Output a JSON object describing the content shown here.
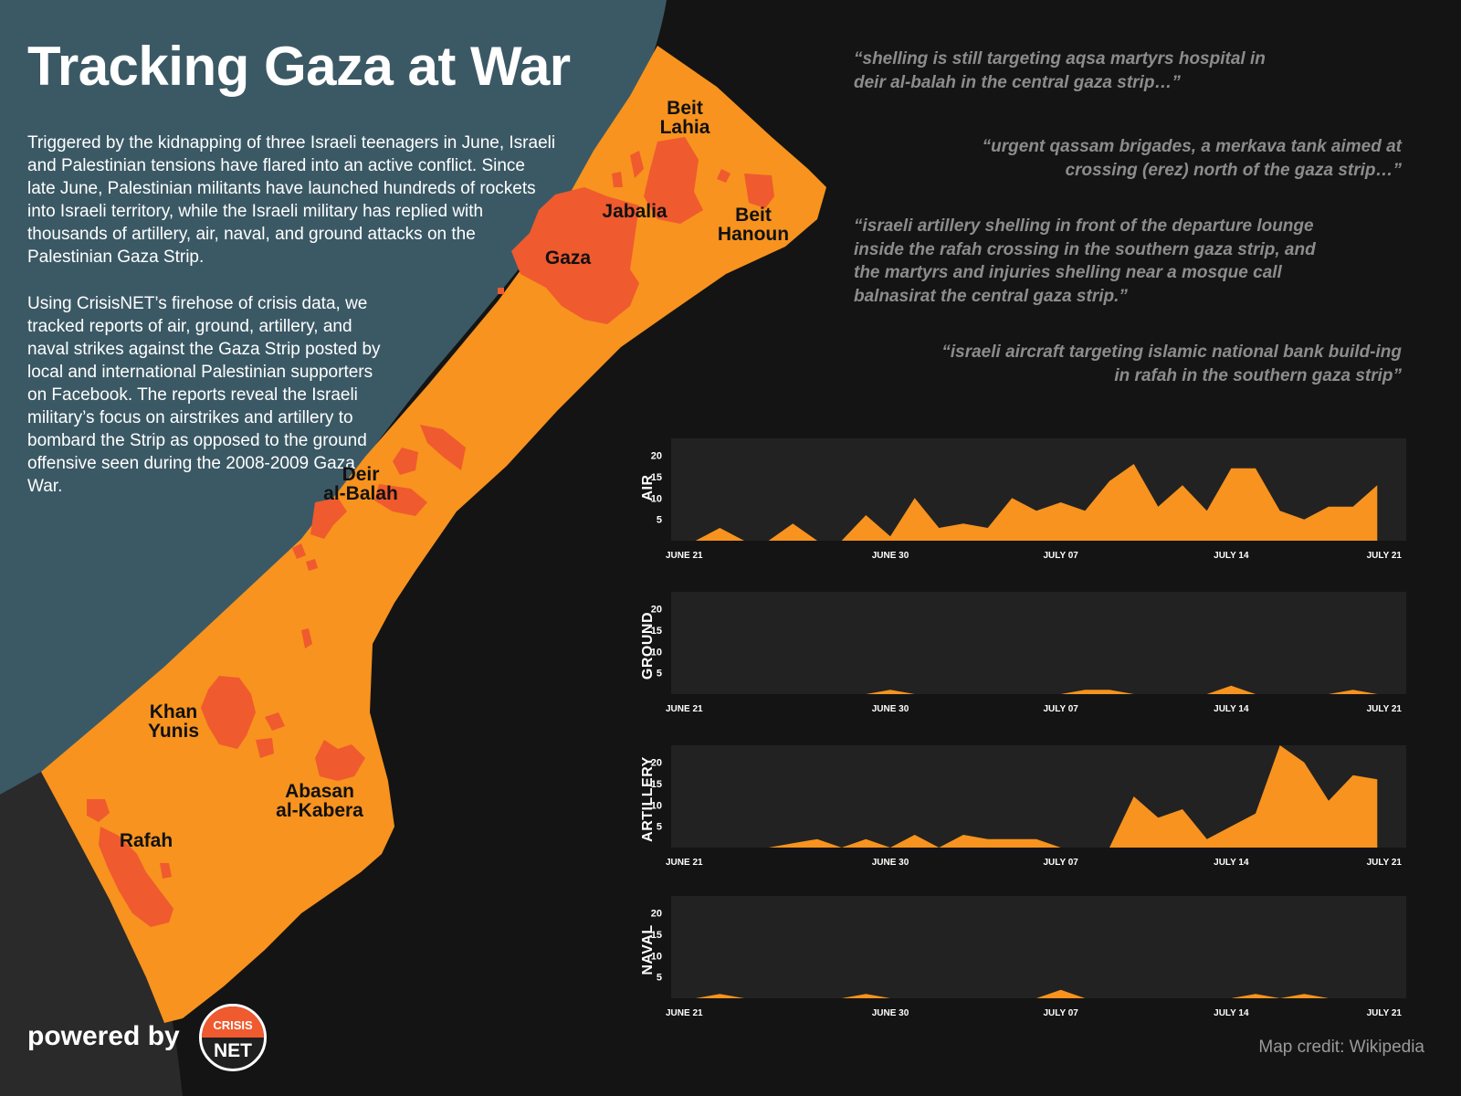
{
  "colors": {
    "background": "#141414",
    "intro_panel": "#3b5965",
    "south_corner": "#2a2a2a",
    "strip": "#f7931e",
    "urban": "#ef5a2f",
    "chart_panel": "#222222",
    "area_fill": "#f7931e",
    "quote_text": "#8c8c8c"
  },
  "header": {
    "title": "Tracking Gaza at War",
    "intro_p1": "Triggered by the kidnapping of three Israeli teenagers in June, Israeli and Palestinian tensions have flared into an active conflict. Since late June, Palestinian militants have launched hundreds of rockets into Israeli territory, while the Israeli military has replied with thousands of artillery, air, naval, and ground attacks on the Palestinian Gaza Strip.",
    "intro_p2": "Using CrisisNET’s firehose of crisis data, we tracked reports of air, ground, artillery, and naval strikes against the Gaza Strip posted by local and international Palestinian supporters on Facebook. The reports reveal the Israeli military’s focus on airstrikes and artillery to bombard the Strip as opposed to the ground offensive seen during the 2008-2009 Gaza War."
  },
  "map": {
    "places": {
      "beit_lahia": "Beit\nLahia",
      "jabalia": "Jabalia",
      "beit_hanoun": "Beit\nHanoun",
      "gaza": "Gaza",
      "deir_al_balah": "Deir\nal-Balah",
      "khan_yunis": "Khan\nYunis",
      "abasan": "Abasan\nal-Kabera",
      "rafah": "Rafah"
    },
    "credit": "Map credit: Wikipedia"
  },
  "quotes": [
    "“shelling is still targeting aqsa martyrs hospital in deir al-balah in the central gaza strip…”",
    "“urgent qassam brigades, a merkava tank aimed at crossing (erez) north of the gaza strip…”",
    "“israeli artillery shelling in front of the departure lounge inside the rafah crossing in the southern gaza strip, and the martyrs and injuries shelling near a mosque call balnasirat the central gaza strip.”",
    "“israeli aircraft targeting islamic national bank build-ing in rafah in the southern gaza strip”"
  ],
  "footer": {
    "powered_by": "powered by",
    "logo_top": "CRISIS",
    "logo_bottom": "NET"
  },
  "chart_data": [
    {
      "type": "area",
      "title": "AIR",
      "x": [
        "June 21",
        "June 22",
        "June 23",
        "June 24",
        "June 25",
        "June 26",
        "June 27",
        "June 28",
        "June 29",
        "June 30",
        "July 01",
        "July 02",
        "July 03",
        "July 04",
        "July 05",
        "July 06",
        "July 07",
        "July 08",
        "July 09",
        "July 10",
        "July 11",
        "July 12",
        "July 13",
        "July 14",
        "July 15",
        "July 16",
        "July 17",
        "July 18",
        "July 19",
        "July 20",
        "July 21"
      ],
      "values": [
        0,
        0,
        3,
        0,
        0,
        4,
        0,
        0,
        6,
        1,
        10,
        3,
        4,
        3,
        10,
        7,
        9,
        7,
        14,
        18,
        8,
        13,
        7,
        17,
        17,
        7,
        5,
        8,
        8,
        13,
        null
      ],
      "yticks": [
        5,
        10,
        15,
        20
      ],
      "ylim": [
        0,
        24
      ],
      "xticks": [
        "JUNE 21",
        "JUNE 30",
        "JULY 07",
        "JULY 14",
        "JULY 21"
      ]
    },
    {
      "type": "area",
      "title": "GROUND",
      "x": [
        "June 21",
        "June 22",
        "June 23",
        "June 24",
        "June 25",
        "June 26",
        "June 27",
        "June 28",
        "June 29",
        "June 30",
        "July 01",
        "July 02",
        "July 03",
        "July 04",
        "July 05",
        "July 06",
        "July 07",
        "July 08",
        "July 09",
        "July 10",
        "July 11",
        "July 12",
        "July 13",
        "July 14",
        "July 15",
        "July 16",
        "July 17",
        "July 18",
        "July 19",
        "July 20",
        "July 21"
      ],
      "values": [
        0,
        0,
        0,
        0,
        0,
        0,
        0,
        0,
        0,
        1,
        0,
        0,
        0,
        0,
        0,
        0,
        0,
        1,
        1,
        0,
        0,
        0,
        0,
        2,
        0,
        0,
        0,
        0,
        1,
        0,
        null
      ],
      "yticks": [
        5,
        10,
        15,
        20
      ],
      "ylim": [
        0,
        24
      ],
      "xticks": [
        "JUNE 21",
        "JUNE 30",
        "JULY 07",
        "JULY 14",
        "JULY 21"
      ]
    },
    {
      "type": "area",
      "title": "ARTILLERY",
      "x": [
        "June 21",
        "June 22",
        "June 23",
        "June 24",
        "June 25",
        "June 26",
        "June 27",
        "June 28",
        "June 29",
        "June 30",
        "July 01",
        "July 02",
        "July 03",
        "July 04",
        "July 05",
        "July 06",
        "July 07",
        "July 08",
        "July 09",
        "July 10",
        "July 11",
        "July 12",
        "July 13",
        "July 14",
        "July 15",
        "July 16",
        "July 17",
        "July 18",
        "July 19",
        "July 20",
        "July 21"
      ],
      "values": [
        0,
        0,
        0,
        0,
        0,
        1,
        2,
        0,
        2,
        0,
        3,
        0,
        3,
        2,
        2,
        2,
        0,
        0,
        0,
        12,
        7,
        9,
        2,
        5,
        8,
        24,
        20,
        11,
        17,
        16,
        null
      ],
      "yticks": [
        5,
        10,
        15,
        20
      ],
      "ylim": [
        0,
        24
      ],
      "xticks": [
        "JUNE 21",
        "JUNE 30",
        "JULY 07",
        "JULY 14",
        "JULY 21"
      ]
    },
    {
      "type": "area",
      "title": "NAVAL",
      "x": [
        "June 21",
        "June 22",
        "June 23",
        "June 24",
        "June 25",
        "June 26",
        "June 27",
        "June 28",
        "June 29",
        "June 30",
        "July 01",
        "July 02",
        "July 03",
        "July 04",
        "July 05",
        "July 06",
        "July 07",
        "July 08",
        "July 09",
        "July 10",
        "July 11",
        "July 12",
        "July 13",
        "July 14",
        "July 15",
        "July 16",
        "July 17",
        "July 18",
        "July 19",
        "July 20",
        "July 21"
      ],
      "values": [
        0,
        0,
        1,
        0,
        0,
        0,
        0,
        0,
        1,
        0,
        0,
        0,
        0,
        0,
        0,
        0,
        2,
        0,
        0,
        0,
        0,
        0,
        0,
        0,
        1,
        0,
        1,
        0,
        0,
        0,
        null
      ],
      "yticks": [
        5,
        10,
        15,
        20
      ],
      "ylim": [
        0,
        24
      ],
      "xticks": [
        "JUNE 21",
        "JUNE 30",
        "JULY 07",
        "JULY 14",
        "JULY 21"
      ]
    }
  ]
}
